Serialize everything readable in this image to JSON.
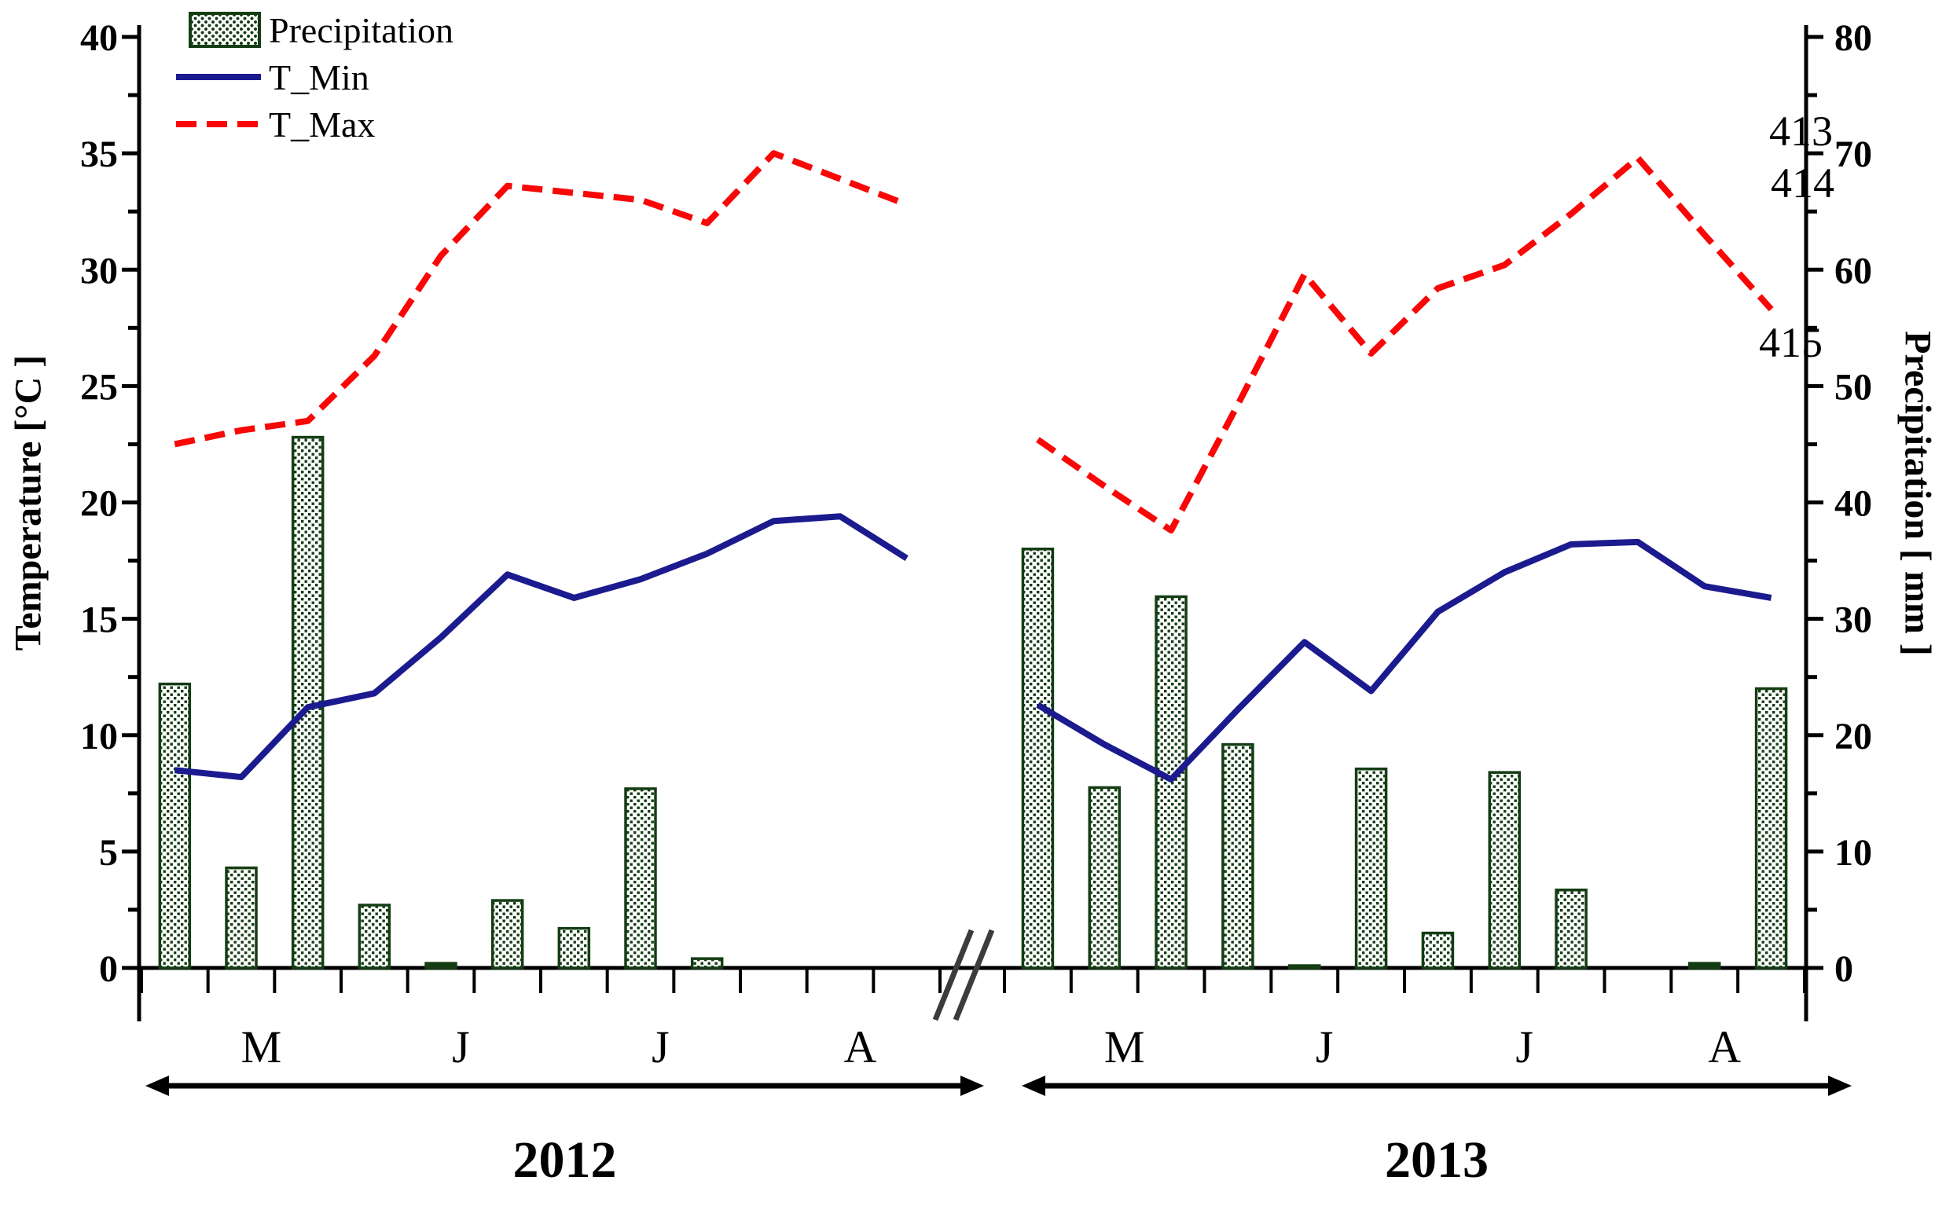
{
  "legend": {
    "items": [
      {
        "label": "Precipitation",
        "swatch": "hatched-bar"
      },
      {
        "label": "T_Min",
        "swatch": "solid-line"
      },
      {
        "label": "T_Max",
        "swatch": "dashed-line"
      }
    ]
  },
  "left_axis": {
    "title": "Temperature [°C ]",
    "min": 0,
    "max": 40,
    "major_tick_step": 5,
    "minor_tick_step": 2.5,
    "tick_labels": [
      "0",
      "5",
      "10",
      "15",
      "20",
      "25",
      "30",
      "35",
      "40"
    ]
  },
  "right_axis": {
    "title": "Precipitation [ mm ]",
    "min": 0,
    "max": 80,
    "major_tick_step": 10,
    "minor_tick_step": 5,
    "tick_labels": [
      "0",
      "10",
      "20",
      "30",
      "40",
      "50",
      "60",
      "70",
      "80"
    ]
  },
  "x_axis": {
    "axis_break_mark": "//",
    "ticks_per_year": 13
  },
  "annotations": {
    "line_numbers": [
      "413",
      "414",
      "415"
    ]
  },
  "colors": {
    "bar_green": "#143D14",
    "t_min_navy": "#1B1B8F",
    "t_max_red": "#F90707",
    "axis_black": "#000000",
    "break_gray": "#3C3C3C"
  },
  "chart_data": {
    "type": "combo: bar (precipitation, right axis) + line (T_Min, T_Max, left axis)",
    "x_unit": "10-day periods, 3 per month, May-August",
    "grid": "off",
    "ylim_left_c": [
      0,
      40
    ],
    "ylim_right_mm": [
      0,
      80
    ],
    "years": [
      {
        "year": "2012",
        "month_labels": [
          "M",
          "J",
          "J",
          "A"
        ],
        "precipitation_mm": [
          24.4,
          8.6,
          45.6,
          5.4,
          0.4,
          5.8,
          3.4,
          15.4,
          0.8,
          0,
          0,
          0
        ],
        "t_min_c": [
          8.5,
          8.2,
          11.2,
          11.8,
          14.2,
          16.9,
          15.9,
          16.7,
          17.8,
          19.2,
          19.4,
          17.6
        ],
        "t_max_c": [
          22.5,
          23.1,
          23.5,
          26.3,
          30.6,
          33.6,
          33.3,
          33.0,
          32.0,
          35.0,
          33.9,
          32.8
        ]
      },
      {
        "year": "2013",
        "month_labels": [
          "M",
          "J",
          "J",
          "A"
        ],
        "precipitation_mm": [
          36.0,
          15.5,
          31.9,
          19.2,
          0.2,
          17.1,
          3.0,
          16.8,
          6.7,
          0,
          0.4,
          24.0
        ],
        "t_min_c": [
          11.3,
          9.6,
          8.1,
          11.1,
          14.0,
          11.9,
          15.3,
          17.0,
          18.2,
          18.3,
          16.4,
          15.9
        ],
        "t_max_c": [
          22.7,
          20.7,
          18.8,
          24.2,
          29.8,
          26.4,
          29.2,
          30.2,
          32.4,
          34.8,
          31.5,
          28.3
        ]
      }
    ]
  }
}
